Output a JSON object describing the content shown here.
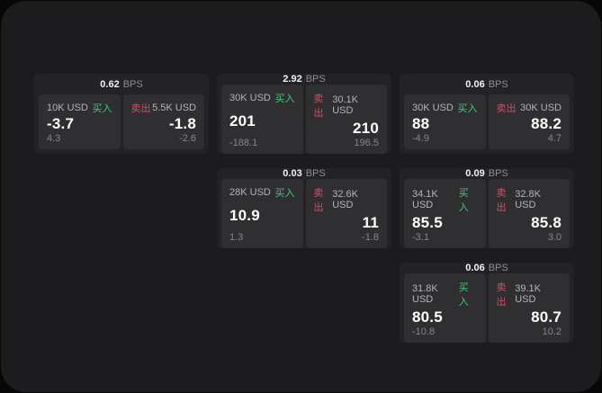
{
  "window": {
    "bg": "#1c1c1e",
    "outer_bg": "#070707",
    "card_bg": "#232326",
    "panel_bg": "#2f2f32"
  },
  "labels": {
    "bps": "BPS",
    "buy": "买入",
    "sell": "卖出"
  },
  "colors": {
    "buy": "#41c97a",
    "sell": "#d24f63"
  },
  "cards": [
    {
      "bps": "0.62",
      "buy": {
        "amount": "10K USD",
        "value": "-3.7",
        "delta": "4.3"
      },
      "sell": {
        "amount": "5.5K USD",
        "value": "-1.8",
        "delta": "-2.6"
      }
    },
    {
      "bps": "2.92",
      "buy": {
        "amount": "30K USD",
        "value": "201",
        "delta": "-188.1"
      },
      "sell": {
        "amount": "30.1K USD",
        "value": "210",
        "delta": "196.5"
      }
    },
    {
      "bps": "0.06",
      "buy": {
        "amount": "30K USD",
        "value": "88",
        "delta": "-4.9"
      },
      "sell": {
        "amount": "30K USD",
        "value": "88.2",
        "delta": "4.7"
      }
    },
    {
      "bps": "0.03",
      "buy": {
        "amount": "28K USD",
        "value": "10.9",
        "delta": "1.3"
      },
      "sell": {
        "amount": "32.6K USD",
        "value": "11",
        "delta": "-1.8"
      }
    },
    {
      "bps": "0.09",
      "buy": {
        "amount": "34.1K USD",
        "value": "85.5",
        "delta": "-3.1"
      },
      "sell": {
        "amount": "32.8K USD",
        "value": "85.8",
        "delta": "3.0"
      }
    },
    {
      "bps": "0.06",
      "buy": {
        "amount": "31.8K USD",
        "value": "80.5",
        "delta": "-10.8"
      },
      "sell": {
        "amount": "39.1K USD",
        "value": "80.7",
        "delta": "10.2"
      }
    }
  ]
}
